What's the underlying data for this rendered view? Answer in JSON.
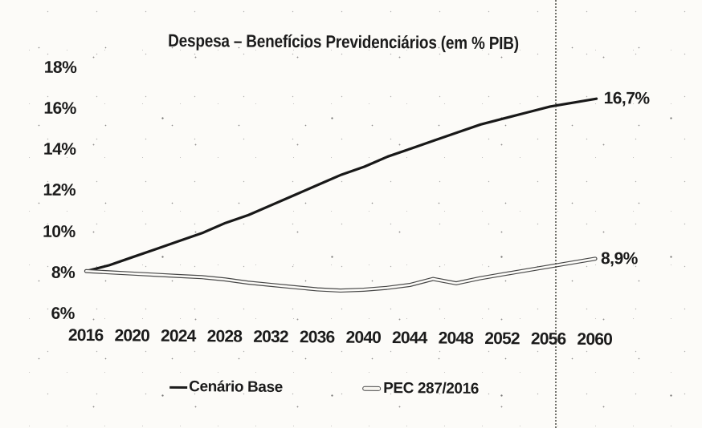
{
  "title": "Despesa – Benefícios Previdenciários (em % PIB)",
  "colors": {
    "base_line": "#181818",
    "pec_outline": "#474747",
    "paper": "#fcfbf8",
    "text": "#1b1b1b",
    "fold_line": "#3e3e38"
  },
  "y_axis": {
    "ticks": [
      "18%",
      "16%",
      "14%",
      "12%",
      "10%",
      "8%",
      "6%"
    ]
  },
  "x_axis": {
    "ticks": [
      "2016",
      "2020",
      "2024",
      "2028",
      "2032",
      "2036",
      "2040",
      "2044",
      "2048",
      "2052",
      "2056",
      "2060"
    ]
  },
  "end_labels": {
    "base": "16,7%",
    "pec": "8,9%"
  },
  "legend": [
    {
      "label": "Cenário Base"
    },
    {
      "label": "PEC 287/2016"
    }
  ],
  "chart_data": {
    "type": "line",
    "title": "Despesa – Benefícios Previdenciários (em % PIB)",
    "xlabel": "",
    "ylabel": "% PIB",
    "ylim": [
      6,
      18
    ],
    "y_tick_step": 2,
    "x_tick_step": 4,
    "grid": false,
    "legend_position": "bottom",
    "x": [
      2016,
      2018,
      2020,
      2022,
      2024,
      2026,
      2028,
      2030,
      2032,
      2034,
      2036,
      2038,
      2040,
      2042,
      2044,
      2046,
      2048,
      2050,
      2052,
      2054,
      2056,
      2058,
      2060
    ],
    "series": [
      {
        "name": "Cenário Base",
        "style": "solid-dark",
        "end_label": "16,7%",
        "values": [
          8.1,
          8.4,
          8.8,
          9.2,
          9.6,
          10.0,
          10.5,
          10.9,
          11.4,
          11.9,
          12.4,
          12.9,
          13.3,
          13.8,
          14.2,
          14.6,
          15.0,
          15.4,
          15.7,
          16.0,
          16.3,
          16.5,
          16.7
        ]
      },
      {
        "name": "PEC 287/2016",
        "style": "hollow-light",
        "end_label": "8,9%",
        "values": [
          8.1,
          8.05,
          8.0,
          7.95,
          7.9,
          7.85,
          7.75,
          7.6,
          7.5,
          7.4,
          7.3,
          7.25,
          7.3,
          7.4,
          7.55,
          7.85,
          7.65,
          7.9,
          8.1,
          8.3,
          8.5,
          8.7,
          8.9
        ]
      }
    ]
  }
}
